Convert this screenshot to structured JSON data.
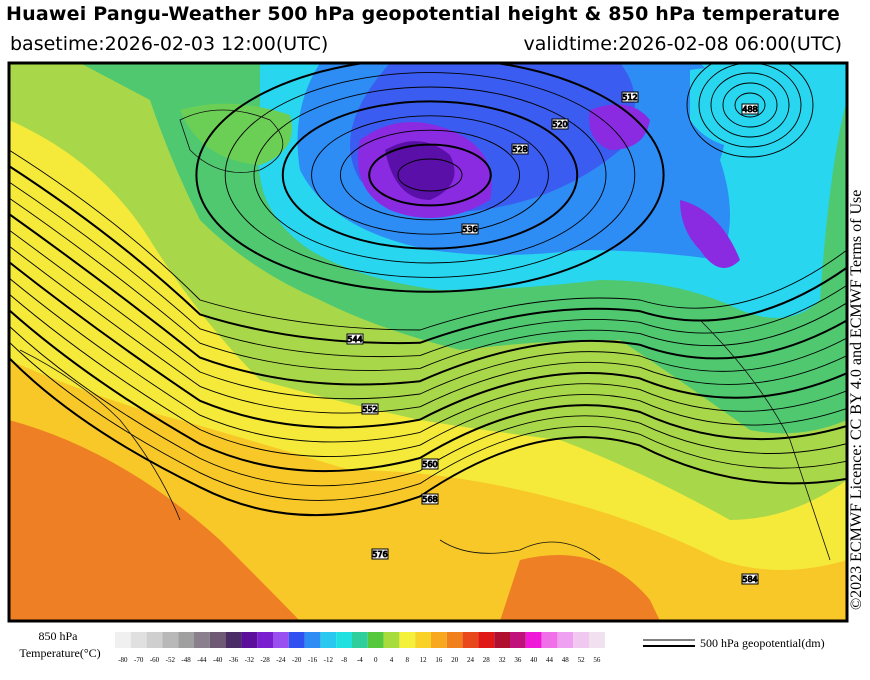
{
  "header": {
    "title": "Huawei Pangu-Weather 500 hPa geopotential height & 850 hPa temperature",
    "basetime": "basetime:2026-02-03 12:00(UTC)",
    "validtime": "validtime:2026-02-08 06:00(UTC)"
  },
  "licence": "©2023 ECMWF Licence: CC BY 4.0 and ECMWF Terms of Use",
  "legend": {
    "temperature_title": "850 hPa",
    "temperature_unit": "Temperature(°C)",
    "ticks": [
      -80,
      -70,
      -60,
      -52,
      -48,
      -44,
      -40,
      -36,
      -32,
      -28,
      -24,
      -20,
      -16,
      -12,
      -8,
      -4,
      0,
      4,
      8,
      12,
      16,
      20,
      24,
      28,
      32,
      36,
      40,
      44,
      48,
      52,
      56
    ],
    "colors": [
      "#f0f0f0",
      "#e0e0e0",
      "#cfcfcf",
      "#b8b8b8",
      "#a0a0a0",
      "#8a7f8c",
      "#6e5a75",
      "#4b2d66",
      "#5b0f9b",
      "#7a1fd0",
      "#9a50f0",
      "#3050f0",
      "#2e8cf5",
      "#28c8f0",
      "#20e0e0",
      "#2ecf9a",
      "#56c83c",
      "#a8dc3c",
      "#f5f03a",
      "#f8d228",
      "#f8a81e",
      "#f27f1e",
      "#e8481c",
      "#e01818",
      "#b01030",
      "#c0107a",
      "#f018d8",
      "#f070e8",
      "#f0a0f0",
      "#f0c8f0",
      "#f0e0f0"
    ],
    "contour_label": "500 hPa geopotential(dm)"
  },
  "contour_labels": [
    "488",
    "512",
    "520",
    "528",
    "536",
    "544",
    "552",
    "560",
    "568",
    "576",
    "584"
  ]
}
